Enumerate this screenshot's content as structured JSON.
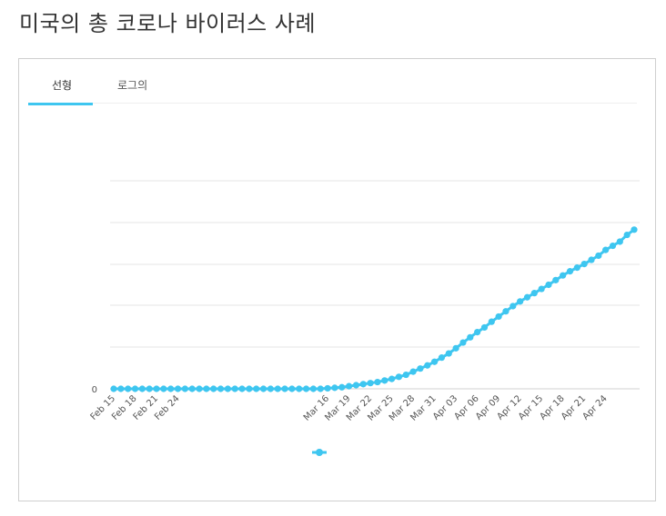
{
  "page": {
    "title": "미국의 총 코로나 바이러스 사례"
  },
  "tabs": {
    "linear": "선형",
    "log": "로그의",
    "active": "linear"
  },
  "colors": {
    "series": "#3ec6f0",
    "grid": "#e6e6e6",
    "title": "#333333"
  },
  "chart_data": {
    "type": "line",
    "title": "",
    "xlabel": "",
    "ylabel": "",
    "y_tick_labels": [
      "0"
    ],
    "x_tick_labels": [
      "Feb 15",
      "Feb 18",
      "Feb 21",
      "Feb 24",
      "Mar 16",
      "Mar 19",
      "Mar 22",
      "Mar 25",
      "Mar 28",
      "Mar 31",
      "Apr 03",
      "Apr 06",
      "Apr 09",
      "Apr 12",
      "Apr 15",
      "Apr 18",
      "Apr 21",
      "Apr 24"
    ],
    "x_tick_day_offsets": [
      0,
      3,
      6,
      9,
      30,
      33,
      36,
      39,
      42,
      45,
      48,
      51,
      54,
      57,
      60,
      63,
      66,
      69
    ],
    "legend": {
      "position": "bottom-center",
      "show_marker_only": true
    },
    "grid": true,
    "series": [
      {
        "name": "",
        "values": [
          0,
          0,
          0,
          0,
          0,
          0,
          0,
          0,
          0,
          0,
          0,
          0,
          0,
          0,
          0,
          0,
          0,
          0,
          0,
          0,
          0,
          0,
          0,
          0,
          0,
          0,
          0,
          0,
          0,
          0,
          1,
          2,
          3,
          5,
          7,
          9,
          11,
          13,
          16,
          19,
          23,
          27,
          33,
          39,
          45,
          52,
          60,
          68,
          78,
          89,
          99,
          109,
          118,
          129,
          139,
          149,
          159,
          168,
          176,
          184,
          192,
          200,
          209,
          218,
          226,
          233,
          240,
          248,
          256,
          267,
          275,
          283,
          296,
          306
        ]
      }
    ],
    "ylim": [
      0,
      400
    ]
  }
}
